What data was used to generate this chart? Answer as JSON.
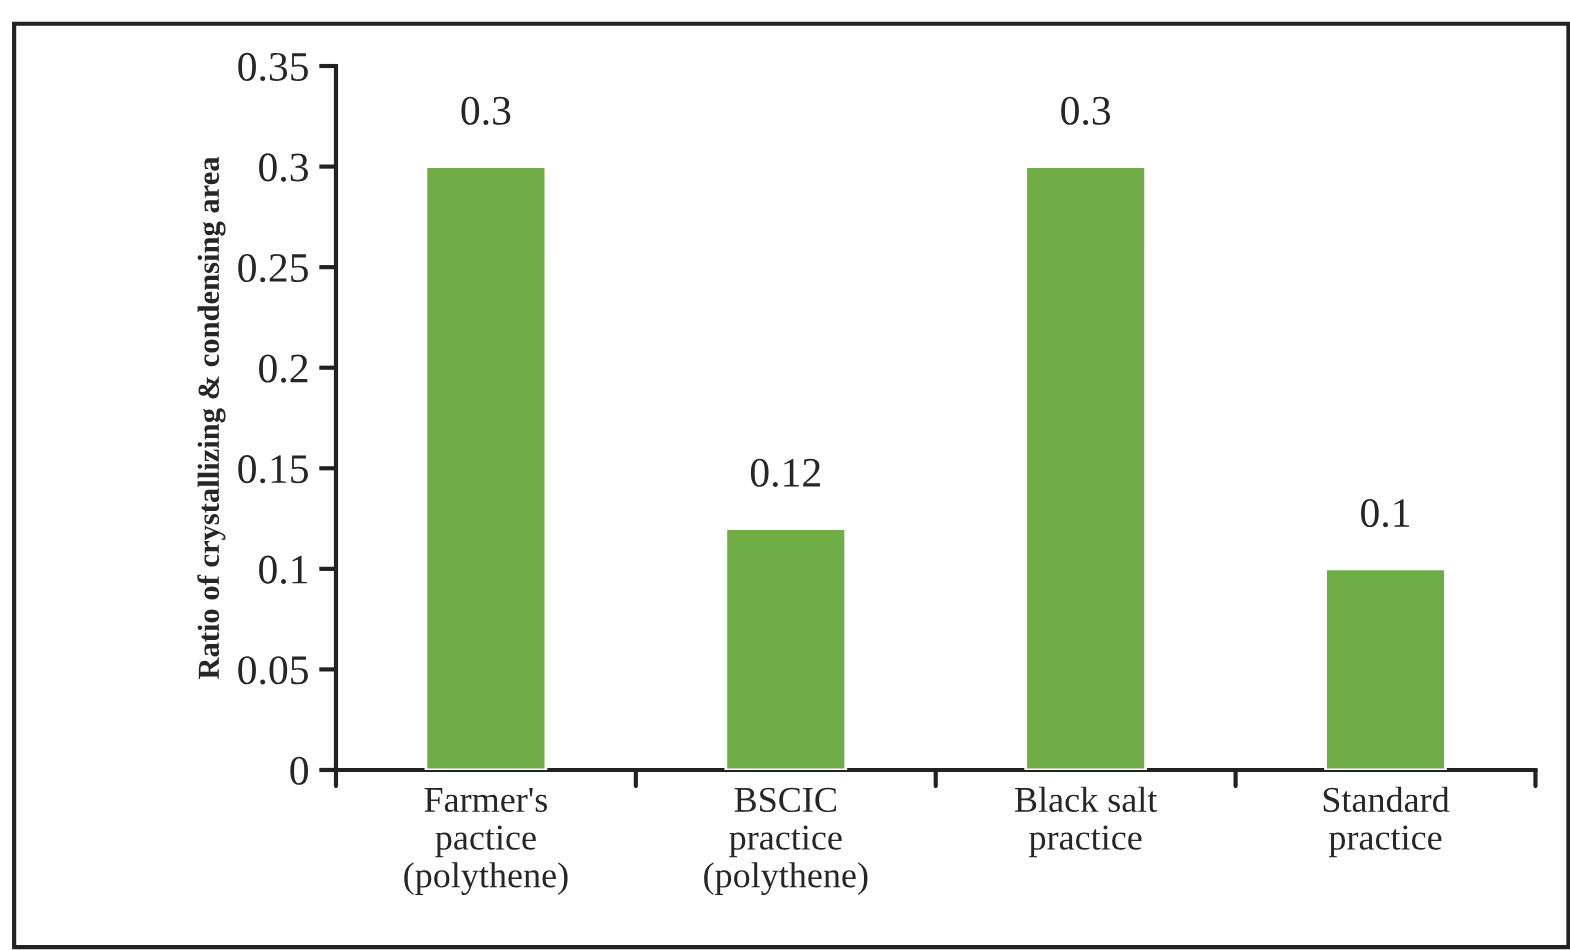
{
  "chart_data": {
    "type": "bar",
    "ylabel": "Ratio of crystallizing & condensing area",
    "categories": [
      "Farmer's\npactice\n(polythene)",
      "BSCIC\npractice\n(polythene)",
      "Black salt\npractice",
      "Standard\npractice"
    ],
    "values": [
      0.3,
      0.12,
      0.3,
      0.1
    ],
    "color": "#70ad47",
    "ylim": [
      0,
      0.35
    ],
    "yticks": [
      {
        "value": 0,
        "label": "0"
      },
      0.05,
      0.1,
      0.15,
      0.2,
      0.25,
      0.3,
      0.35
    ],
    "data_labels": true,
    "grid": false,
    "legend": false
  }
}
